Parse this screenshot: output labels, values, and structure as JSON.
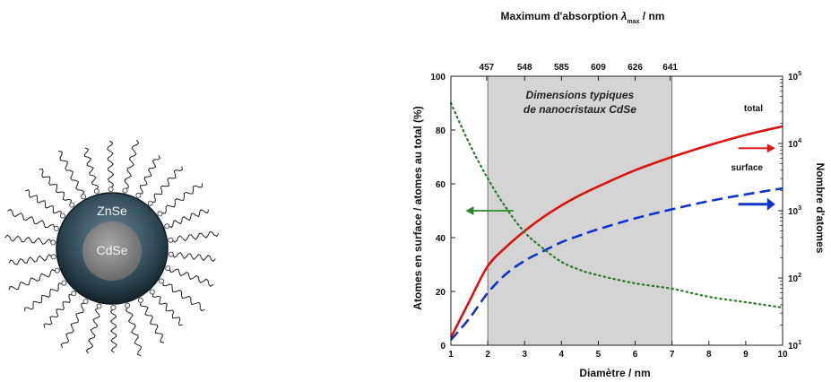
{
  "nanoparticle": {
    "shell_label": "ZnSe",
    "core_label": "CdSe"
  },
  "chart_data": {
    "type": "line",
    "title": "",
    "xlabel": "Diamètre / nm",
    "ylabel_left": "Atomes en surface / atomes au total (%)",
    "ylabel_right": "Nombre d'atomes",
    "top_axis_label": "Maximum d'absorption λmax / nm",
    "top_axis_prefix": "Maximum d'absorption ",
    "top_axis_lambda": "λ",
    "top_axis_sub": "max",
    "top_axis_suffix": " / nm",
    "xlim": [
      1,
      10
    ],
    "ylim_left": [
      0,
      100
    ],
    "ylim_right_log": [
      10,
      100000
    ],
    "x_ticks": [
      "1",
      "2",
      "3",
      "4",
      "5",
      "6",
      "7",
      "8",
      "9",
      "10"
    ],
    "y_left_ticks": [
      "0",
      "20",
      "40",
      "60",
      "80",
      "100"
    ],
    "y_right_ticks": [
      {
        "base": "10",
        "exp": "1",
        "value": 10
      },
      {
        "base": "10",
        "exp": "2",
        "value": 100
      },
      {
        "base": "10",
        "exp": "3",
        "value": 1000
      },
      {
        "base": "10",
        "exp": "4",
        "value": 10000
      },
      {
        "base": "10",
        "exp": "5",
        "value": 100000
      }
    ],
    "top_ticks": [
      {
        "label": "457",
        "x": 1.97
      },
      {
        "label": "548",
        "x": 3.0
      },
      {
        "label": "585",
        "x": 4.0
      },
      {
        "label": "609",
        "x": 5.0
      },
      {
        "label": "626",
        "x": 6.0
      },
      {
        "label": "641",
        "x": 6.95
      }
    ],
    "shaded_band": {
      "x": [
        2,
        7
      ],
      "label_line1": "Dimensions typiques",
      "label_line2": "de nanocristaux CdSe",
      "color": "#d4d4d4"
    },
    "series": [
      {
        "name": "total",
        "axis": "right-log",
        "color": "#dd1111",
        "style": "solid",
        "x": [
          1,
          1.5,
          2,
          2.5,
          3,
          3.5,
          4,
          4.5,
          5,
          6,
          7,
          8,
          9,
          10
        ],
        "y": [
          13,
          45,
          150,
          290,
          500,
          800,
          1200,
          1700,
          2300,
          4000,
          6300,
          9400,
          13400,
          18000
        ]
      },
      {
        "name": "surface",
        "axis": "right-log",
        "color": "#1133cc",
        "style": "dashed",
        "x": [
          1,
          1.5,
          2,
          2.5,
          3,
          3.5,
          4,
          4.5,
          5,
          6,
          7,
          8,
          9,
          10
        ],
        "y": [
          12,
          25,
          60,
          115,
          180,
          250,
          340,
          430,
          530,
          770,
          1050,
          1390,
          1750,
          2150
        ]
      },
      {
        "name": "",
        "axis": "left",
        "color": "#2a7a2a",
        "style": "dotted",
        "x": [
          1,
          1.5,
          2,
          2.5,
          3,
          3.5,
          4,
          4.5,
          5,
          6,
          7,
          8,
          9,
          10
        ],
        "y": [
          90,
          75,
          62,
          51,
          42,
          36,
          31,
          28,
          26,
          23,
          21,
          18,
          16,
          14
        ]
      }
    ],
    "arrows": [
      {
        "series": "",
        "direction": "left",
        "x": [
          2.7,
          1.4
        ],
        "axis": "left",
        "y": 50,
        "color": "#2a8a2a"
      },
      {
        "series": "total",
        "direction": "right",
        "x": [
          8.8,
          9.8
        ],
        "axis": "right-log",
        "y": 8500,
        "color": "#dd1111"
      },
      {
        "series": "surface",
        "direction": "right",
        "x": [
          8.8,
          9.8
        ],
        "axis": "right-log",
        "y": 1250,
        "color": "#1133cc"
      }
    ],
    "grid": false,
    "colors": {
      "total": "#dd1111",
      "surface": "#1133cc",
      "surface_ratio": "#2a7a2a",
      "shell": "#2e4652",
      "core": "#8a8a8a"
    }
  }
}
